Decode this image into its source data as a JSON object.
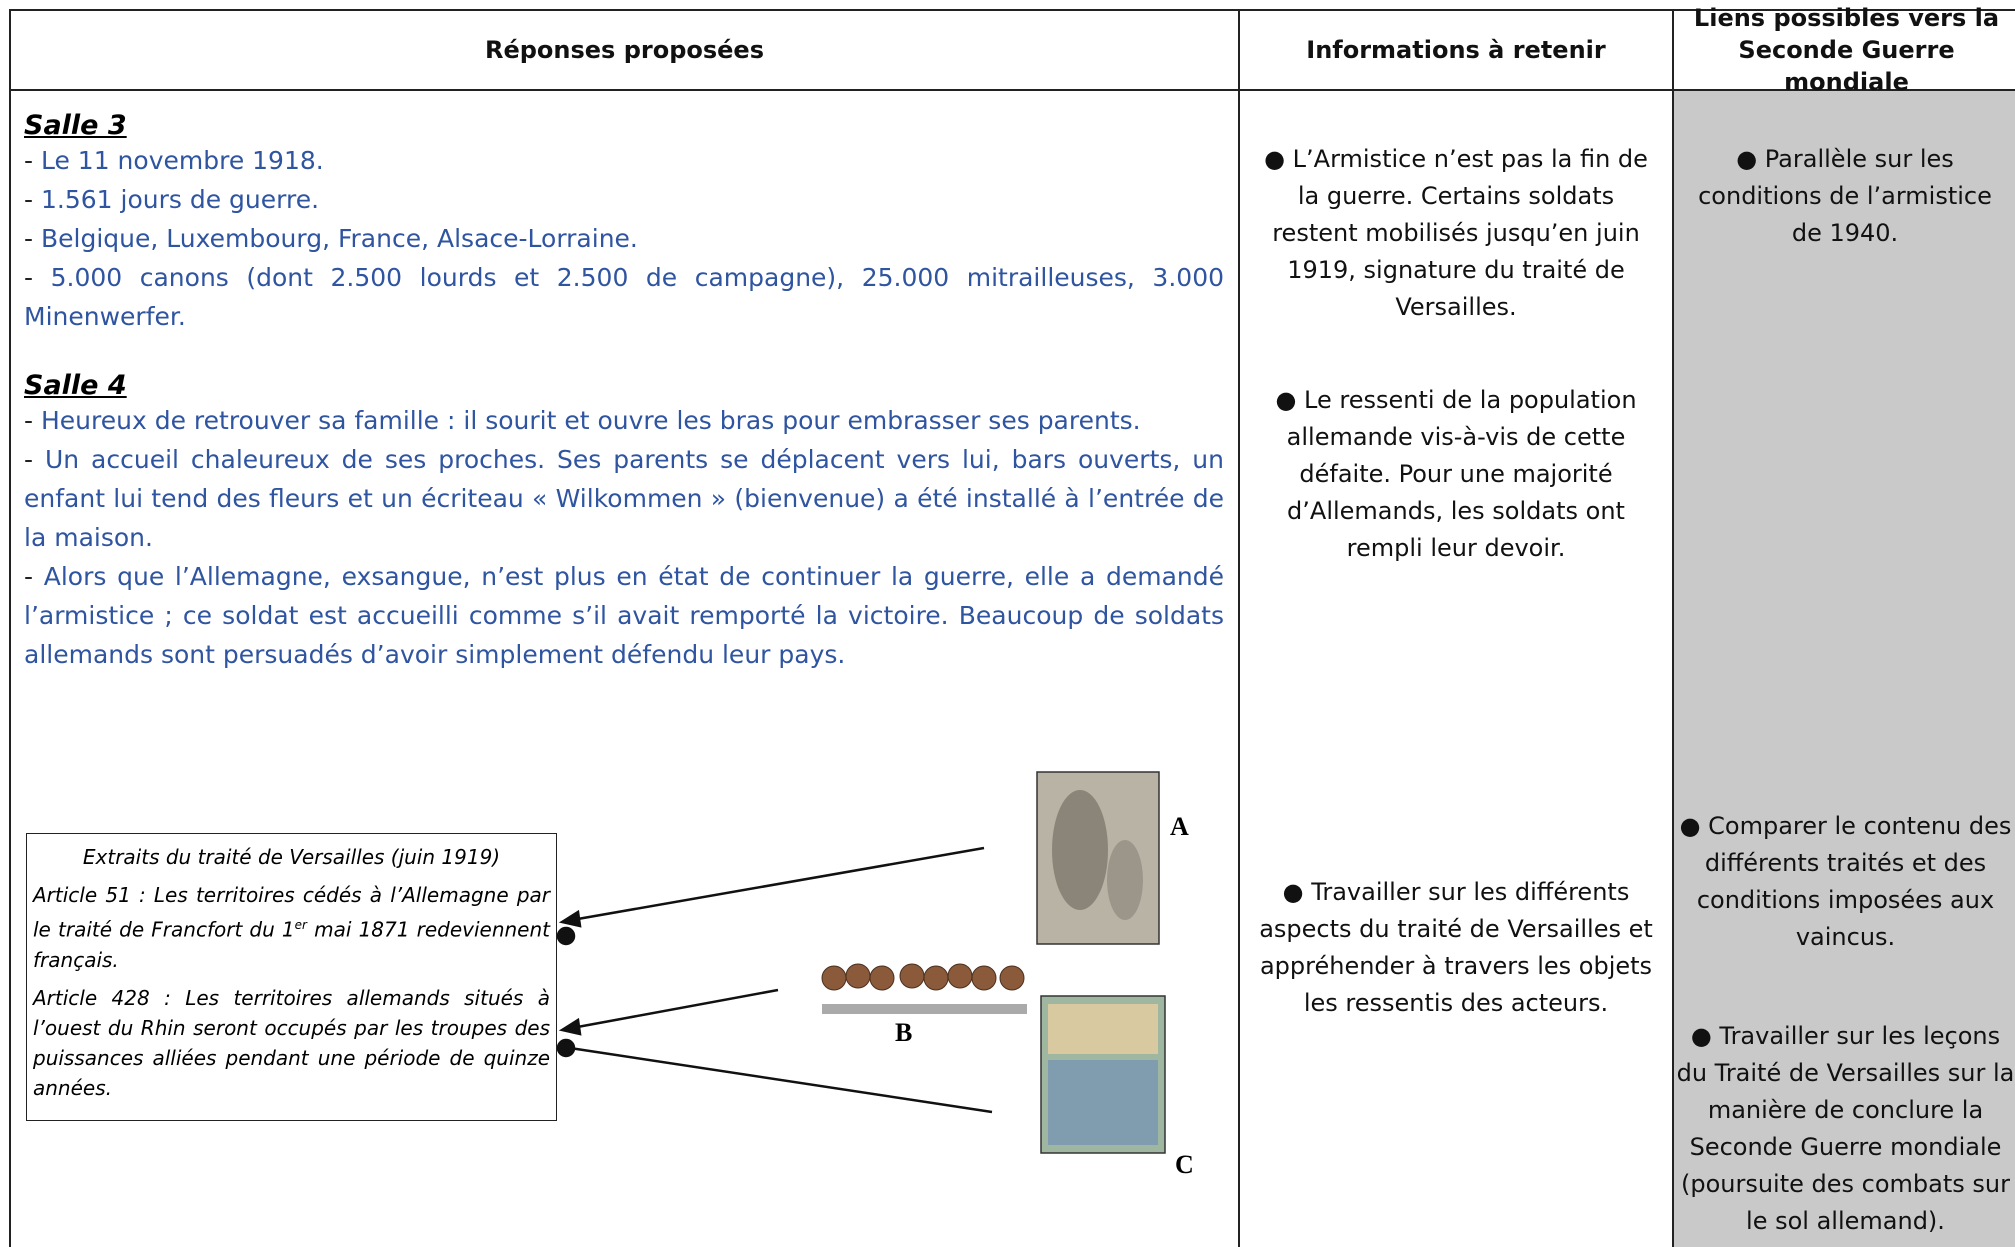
{
  "table": {
    "headers": [
      "Réponses proposées",
      "Informations à retenir",
      "Liens possibles vers la Seconde Guerre mondiale"
    ],
    "column_1": {
      "item_marker": "-",
      "sections": [
        {
          "title": "Salle 3",
          "items": [
            "Le 11 novembre 1918.",
            "1.561 jours de guerre.",
            "Belgique, Luxembourg, France, Alsace-Lorraine.",
            "5.000 canons (dont 2.500 lourds et 2.500 de campagne), 25.000 mitrailleuses, 3.000 Minenwerfer."
          ]
        },
        {
          "title": "Salle 4",
          "items": [
            "Heureux de retrouver sa famille : il sourit et ouvre les bras pour embrasser ses parents.",
            "Un accueil chaleureux de ses proches. Ses parents se déplacent vers lui, bars ouverts, un enfant lui tend des fleurs et un écriteau « Wilkommen » (bienvenue) a été installé à l’entrée de la maison.",
            "Alors que l’Allemagne, exsangue, n’est plus en état de continuer la guerre, elle a demandé l’armistice ; ce soldat est accueilli comme s’il avait remporté la victoire. Beaucoup de soldats allemands sont persuadés d’avoir simplement défendu leur pays."
          ]
        }
      ],
      "extract": {
        "title": "Extraits du traité de Versailles (juin 1919)",
        "article_51": [
          "Article 51 : Les territoires cédés à l’Allemagne par le traité de Francfort du 1",
          "er",
          " mai 1871 redeviennent français."
        ],
        "article_428": "Article 428 : Les territoires allemands situés à l’ouest du Rhin seront occupés par les troupes des puissances alliées pendant une période de quinze années."
      },
      "image_labels": [
        "A",
        "B",
        "C"
      ]
    },
    "column_2": [
      "● L’Armistice n’est pas la fin de la guerre. Certains soldats restent mobilisés jusqu’en juin 1919, signature du traité de Versailles.",
      "● Le ressenti de la population allemande vis-à-vis de cette défaite. Pour une majorité d’Allemands, les soldats ont rempli leur devoir.",
      "● Travailler sur les différents aspects du traité de Versailles et appréhender à travers les objets les ressentis des acteurs."
    ],
    "column_3": [
      "● Parallèle sur les conditions de l’armistice de 1940.",
      "● Comparer le contenu des différents traités et des conditions imposées aux vaincus.",
      "● Travailler sur les leçons du Traité de Versailles sur la manière de conclure la Seconde Guerre mondiale (poursuite des combats sur le sol allemand)."
    ]
  }
}
